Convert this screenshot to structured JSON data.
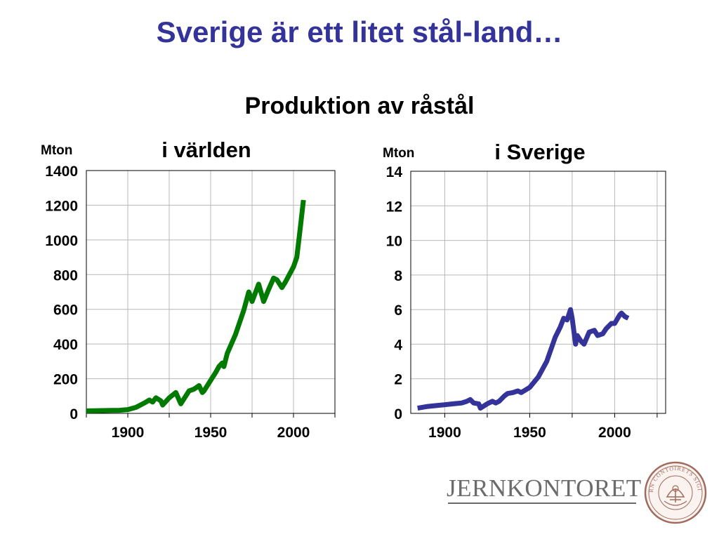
{
  "slide": {
    "title": "Sverige är ett litet stål-land…",
    "subtitle": "Produktion av råstål"
  },
  "logo": {
    "name": "JERNKONTORET",
    "seal_text": "JERN CONTOIRETS SIGILL"
  },
  "colors": {
    "title": "#333399",
    "world_series": "#007a00",
    "sweden_series": "#333399",
    "logo": "#6b6b6b",
    "seal": "#a06a5c"
  },
  "chart_data": [
    {
      "type": "line",
      "title": "i världen",
      "ylabel": "Mton",
      "xlabel": "",
      "xlim": [
        1875,
        2025
      ],
      "ylim": [
        0,
        1400
      ],
      "xticks": [
        1900,
        1950,
        2000
      ],
      "yticks": [
        0,
        200,
        400,
        600,
        800,
        1000,
        1200,
        1400
      ],
      "grid": true,
      "series": [
        {
          "x": [
            1875,
            1880,
            1885,
            1890,
            1895,
            1900,
            1905,
            1910,
            1913,
            1915,
            1917,
            1920,
            1921,
            1925,
            1929,
            1932,
            1935,
            1937,
            1940,
            1943,
            1945,
            1946,
            1950,
            1953,
            1955,
            1957,
            1958,
            1960,
            1965,
            1970,
            1973,
            1975,
            1979,
            1982,
            1985,
            1988,
            1990,
            1993,
            1995,
            2000,
            2002,
            2004,
            2006
          ],
          "y": [
            14,
            15,
            16,
            17,
            18,
            22,
            35,
            60,
            77,
            65,
            90,
            72,
            48,
            90,
            120,
            55,
            100,
            130,
            140,
            160,
            120,
            130,
            190,
            235,
            270,
            290,
            270,
            345,
            455,
            595,
            700,
            645,
            745,
            645,
            715,
            780,
            770,
            725,
            755,
            845,
            900,
            1060,
            1230
          ]
        }
      ]
    },
    {
      "type": "line",
      "title": "i Sverige",
      "ylabel": "Mton",
      "xlabel": "",
      "xlim": [
        1880,
        2030
      ],
      "ylim": [
        0,
        14
      ],
      "xticks": [
        1900,
        1950,
        2000
      ],
      "yticks": [
        0,
        2,
        4,
        6,
        8,
        10,
        12,
        14
      ],
      "grid": true,
      "series": [
        {
          "x": [
            1884,
            1890,
            1895,
            1900,
            1905,
            1910,
            1913,
            1915,
            1917,
            1920,
            1921,
            1925,
            1928,
            1930,
            1932,
            1935,
            1937,
            1940,
            1943,
            1945,
            1950,
            1955,
            1960,
            1965,
            1968,
            1970,
            1972,
            1974,
            1975,
            1977,
            1978,
            1980,
            1982,
            1985,
            1988,
            1990,
            1993,
            1995,
            1998,
            2000,
            2003,
            2004,
            2006,
            2008
          ],
          "y": [
            0.3,
            0.4,
            0.45,
            0.5,
            0.55,
            0.6,
            0.7,
            0.8,
            0.6,
            0.55,
            0.3,
            0.55,
            0.7,
            0.6,
            0.7,
            1.0,
            1.15,
            1.2,
            1.3,
            1.2,
            1.5,
            2.1,
            3.0,
            4.4,
            5.0,
            5.5,
            5.4,
            6.0,
            5.5,
            4.0,
            4.5,
            4.2,
            4.0,
            4.7,
            4.8,
            4.5,
            4.6,
            4.9,
            5.2,
            5.2,
            5.7,
            5.8,
            5.6,
            5.5
          ]
        }
      ]
    }
  ]
}
